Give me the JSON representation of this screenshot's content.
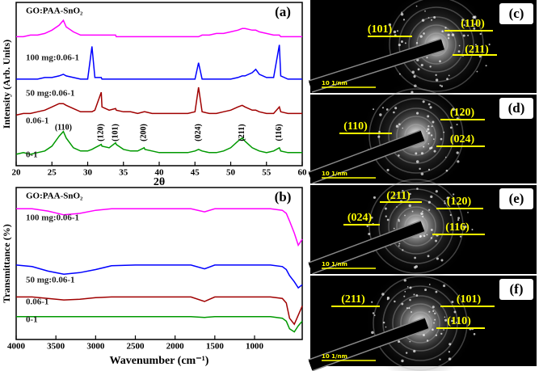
{
  "chart_data": [
    {
      "type": "line",
      "panel": "(a)",
      "title": "GO:PAA-SnO₂",
      "xlabel": "2θ",
      "ylabel": "Intensity (Arb. Units)",
      "x": [
        20,
        21,
        22,
        23,
        24,
        25,
        26,
        26.6,
        27,
        28,
        29,
        30,
        30.6,
        31,
        31.9,
        32,
        33,
        33.9,
        34,
        35,
        36,
        37,
        37.9,
        38,
        39,
        40,
        41,
        42,
        43,
        44,
        45,
        45.5,
        46,
        47,
        48,
        49,
        50,
        51,
        51.6,
        52,
        53,
        53.5,
        54,
        55,
        56,
        56.8,
        57,
        58,
        59,
        60
      ],
      "xlim": [
        20,
        60
      ],
      "xticks": [
        20,
        25,
        30,
        35,
        40,
        45,
        50,
        55,
        60
      ],
      "ylim": [
        0,
        100
      ],
      "series": [
        {
          "name": "100 mg:0.06-1",
          "color": "#ff00ff",
          "values": [
            79,
            79,
            80,
            80,
            81,
            83,
            86,
            89,
            85,
            82,
            80,
            80,
            80,
            80,
            80,
            80,
            80,
            80,
            79,
            79,
            79,
            79,
            79,
            79,
            79,
            79,
            79,
            79,
            79,
            79,
            79,
            79,
            80,
            80,
            81,
            81,
            82,
            83,
            84,
            84,
            83,
            83,
            82,
            81,
            80,
            80,
            79,
            79,
            79,
            79
          ]
        },
        {
          "name": "50 mg:0.06-1",
          "color": "#0000ff",
          "values": [
            53,
            53,
            53,
            53,
            54,
            54,
            55,
            56,
            55,
            54,
            53,
            53,
            73,
            54,
            54,
            53,
            53,
            53,
            53,
            53,
            53,
            53,
            53,
            53,
            53,
            53,
            53,
            53,
            53,
            53,
            53,
            63,
            53,
            53,
            53,
            53,
            53,
            54,
            55,
            55,
            57,
            59,
            56,
            54,
            54,
            74,
            55,
            53,
            53,
            53
          ]
        },
        {
          "name": "0.06-1",
          "color": "#a00000",
          "values": [
            31,
            32,
            32,
            33,
            34,
            36,
            38,
            38,
            37,
            35,
            33,
            33,
            33,
            34,
            45,
            36,
            34,
            35,
            34,
            33,
            33,
            32,
            33,
            33,
            32,
            32,
            32,
            32,
            32,
            32,
            33,
            48,
            33,
            32,
            32,
            33,
            34,
            36,
            37,
            36,
            34,
            34,
            33,
            32,
            32,
            36,
            33,
            32,
            32,
            32
          ]
        },
        {
          "name": "0-1",
          "color": "#009900",
          "values": [
            7,
            8,
            7,
            8,
            9,
            12,
            18,
            21,
            17,
            11,
            9,
            9,
            10,
            11,
            13,
            12,
            11,
            14,
            13,
            10,
            9,
            9,
            11,
            10,
            9,
            8,
            8,
            8,
            8,
            8,
            9,
            10,
            9,
            8,
            8,
            9,
            11,
            15,
            17,
            15,
            11,
            10,
            9,
            8,
            9,
            11,
            9,
            8,
            8,
            8
          ]
        }
      ],
      "annotations": [
        {
          "text": "(110)",
          "x": 26.6
        },
        {
          "text": "(120)",
          "x": 31.9
        },
        {
          "text": "(101)",
          "x": 33.9
        },
        {
          "text": "(200)",
          "x": 37.9
        },
        {
          "text": "(024)",
          "x": 45.5
        },
        {
          "text": "(211)",
          "x": 51.6
        },
        {
          "text": "(116)",
          "x": 56.8
        }
      ]
    },
    {
      "type": "line",
      "panel": "(b)",
      "title": "GO:PAA-SnO₂",
      "xlabel": "Wavenumber (cm⁻¹)",
      "ylabel": "Transmittance (%)",
      "x": [
        4000,
        3800,
        3600,
        3400,
        3200,
        3000,
        2800,
        2500,
        2000,
        1800,
        1630,
        1500,
        1200,
        1000,
        800,
        650,
        600,
        560,
        500,
        450,
        400
      ],
      "xlim": [
        4000,
        400
      ],
      "xticks": [
        4000,
        3500,
        3000,
        2500,
        2000,
        1500,
        1000
      ],
      "ylim": [
        0,
        100
      ],
      "series": [
        {
          "name": "100 mg:0.06-1",
          "color": "#ff00ff",
          "values": [
            86,
            86,
            84.5,
            82,
            83,
            85,
            86,
            86,
            86,
            86,
            84,
            86,
            86,
            86,
            86,
            85,
            83,
            78,
            70,
            62,
            66
          ]
        },
        {
          "name": "50 mg:0.06-1",
          "color": "#0000ff",
          "values": [
            49,
            48,
            45,
            43,
            44,
            46,
            48.5,
            49,
            49,
            49,
            46.5,
            49,
            49,
            49,
            49,
            48,
            46,
            42,
            38,
            34,
            36
          ]
        },
        {
          "name": "0.06-1",
          "color": "#a00000",
          "values": [
            28,
            28,
            27,
            26,
            26.5,
            27.5,
            28,
            28,
            28,
            28,
            25,
            28,
            28,
            28,
            28,
            27,
            24,
            14,
            10,
            16,
            22
          ]
        },
        {
          "name": "0-1",
          "color": "#009900",
          "values": [
            15,
            15,
            15,
            15,
            15,
            15,
            15,
            15,
            15,
            15,
            14.5,
            15,
            15,
            15,
            15,
            14,
            12,
            7,
            5,
            9,
            12
          ]
        }
      ]
    }
  ],
  "images": [
    {
      "panel": "(c)",
      "planes": [
        "(101)",
        "(110)",
        "(211)"
      ],
      "scale": "10 1/nm"
    },
    {
      "panel": "(d)",
      "planes": [
        "(110)",
        "(120)",
        "(024)"
      ],
      "scale": "10 1/nm"
    },
    {
      "panel": "(e)",
      "planes": [
        "(211)",
        "(120)",
        "(024)",
        "(116)"
      ],
      "scale": "10 1/nm"
    },
    {
      "panel": "(f)",
      "planes": [
        "(211)",
        "(101)",
        "(110)"
      ],
      "scale": "10 1/nm"
    }
  ]
}
